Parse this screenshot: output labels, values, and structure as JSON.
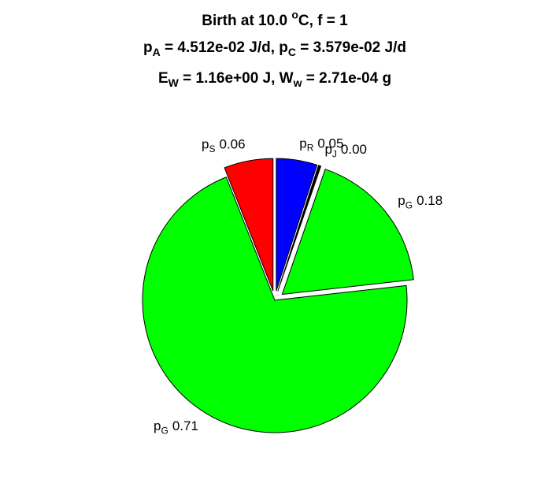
{
  "chart_data": {
    "type": "pie",
    "title": [
      [
        {
          "t": "Birth at 10.0 "
        },
        {
          "t": "o",
          "sup": true
        },
        {
          "t": "C, f = 1"
        }
      ],
      [
        {
          "t": "p"
        },
        {
          "t": "A",
          "sub": true
        },
        {
          "t": " = 4.512e-02 J/d, p"
        },
        {
          "t": "C",
          "sub": true
        },
        {
          "t": " = 3.579e-02 J/d"
        }
      ],
      [
        {
          "t": "E"
        },
        {
          "t": "W",
          "sub": true
        },
        {
          "t": " = 1.16e+00 J, W"
        },
        {
          "t": "w",
          "sub": true
        },
        {
          "t": " = 2.71e-04 g"
        }
      ]
    ],
    "labels": [
      [
        {
          "t": "p"
        },
        {
          "t": "R",
          "sub": true
        }
      ],
      [
        {
          "t": "p"
        },
        {
          "t": "J",
          "sub": true
        }
      ],
      [
        {
          "t": "p"
        },
        {
          "t": "G",
          "sub": true
        }
      ],
      [
        {
          "t": "p"
        },
        {
          "t": "G",
          "sub": true
        }
      ],
      [
        {
          "t": "p"
        },
        {
          "t": "S",
          "sub": true
        }
      ]
    ],
    "values": [
      0.05,
      0.003,
      0.18,
      0.71,
      0.06
    ],
    "value_labels": [
      "0.05",
      "0.00",
      "0.18",
      "0.71",
      "0.06"
    ],
    "colors": [
      "#0000ff",
      "#000000",
      "#00ff00",
      "#00ff00",
      "#ff0000"
    ],
    "explode": [
      1,
      1,
      1,
      0,
      1
    ]
  }
}
